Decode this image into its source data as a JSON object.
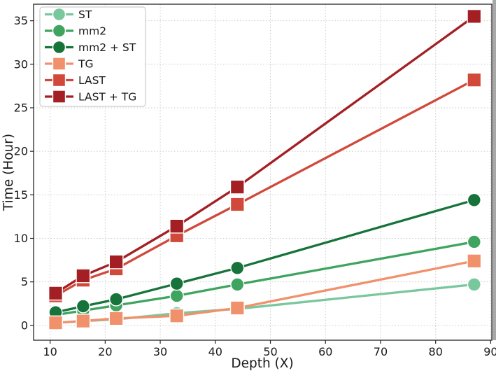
{
  "figure": {
    "background": "#ffffff",
    "axis_color": "#262626",
    "grid_color": "#c9c9c9",
    "edge_strip_color": "#a8a8a8"
  },
  "chart_data": {
    "type": "line",
    "title": "",
    "xlabel": "Depth (X)",
    "ylabel": "Time (Hour)",
    "grid": true,
    "legend_position": "upper-left",
    "x": [
      11,
      16,
      22,
      33,
      44,
      87
    ],
    "xticks": [
      10,
      20,
      30,
      40,
      50,
      60,
      70,
      80,
      90
    ],
    "yticks": [
      0,
      5,
      10,
      15,
      20,
      25,
      30,
      35
    ],
    "xlim": [
      7,
      90.2
    ],
    "ylim": [
      -1.7,
      36.9
    ],
    "series": [
      {
        "name": "ST",
        "marker": "circle",
        "color": "#79c79c",
        "values": [
          0.3,
          0.5,
          0.7,
          1.4,
          1.9,
          4.7
        ]
      },
      {
        "name": "mm2",
        "marker": "circle",
        "color": "#3ea45f",
        "values": [
          1.2,
          1.7,
          2.3,
          3.4,
          4.7,
          9.6
        ]
      },
      {
        "name": "mm2 + ST",
        "marker": "circle",
        "color": "#167339",
        "values": [
          1.5,
          2.2,
          3.0,
          4.8,
          6.6,
          14.4
        ]
      },
      {
        "name": "TG",
        "marker": "square",
        "color": "#f0916c",
        "values": [
          0.3,
          0.5,
          0.8,
          1.1,
          2.0,
          7.4
        ]
      },
      {
        "name": "LAST",
        "marker": "square",
        "color": "#d0493a",
        "values": [
          3.4,
          5.2,
          6.5,
          10.3,
          13.9,
          28.2
        ]
      },
      {
        "name": "LAST + TG",
        "marker": "square",
        "color": "#a31f24",
        "values": [
          3.7,
          5.7,
          7.3,
          11.4,
          15.9,
          35.5
        ]
      }
    ]
  }
}
